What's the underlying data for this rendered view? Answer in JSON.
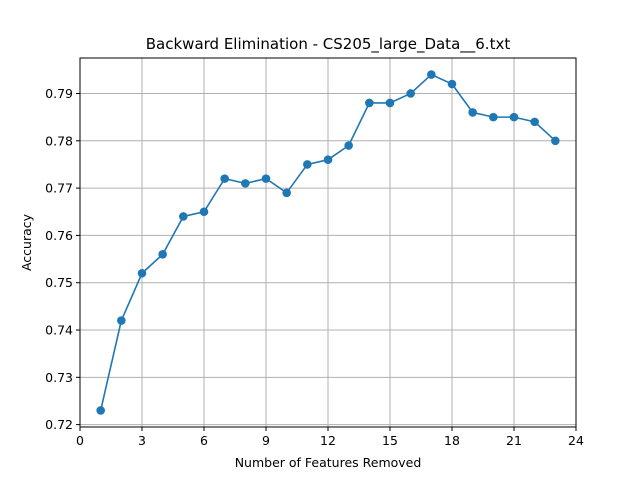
{
  "chart_data": {
    "type": "line",
    "title": "Backward Elimination - CS205_large_Data__6.txt",
    "xlabel": "Number of Features Removed",
    "ylabel": "Accuracy",
    "xlim": [
      0,
      24
    ],
    "ylim": [
      0.7195,
      0.7975
    ],
    "xticks": [
      0,
      3,
      6,
      9,
      12,
      15,
      18,
      21,
      24
    ],
    "yticks": [
      0.72,
      0.73,
      0.74,
      0.75,
      0.76,
      0.77,
      0.78,
      0.79
    ],
    "grid": true,
    "legend": "none",
    "series": [
      {
        "color": "#1f77b4",
        "marker": "circle",
        "x": [
          1,
          2,
          3,
          4,
          5,
          6,
          7,
          8,
          9,
          10,
          11,
          12,
          13,
          14,
          15,
          16,
          17,
          18,
          19,
          20,
          21,
          22,
          23
        ],
        "y": [
          0.723,
          0.742,
          0.752,
          0.756,
          0.764,
          0.765,
          0.772,
          0.771,
          0.772,
          0.769,
          0.775,
          0.776,
          0.779,
          0.788,
          0.788,
          0.79,
          0.794,
          0.792,
          0.786,
          0.785,
          0.785,
          0.784,
          0.78
        ]
      }
    ]
  }
}
